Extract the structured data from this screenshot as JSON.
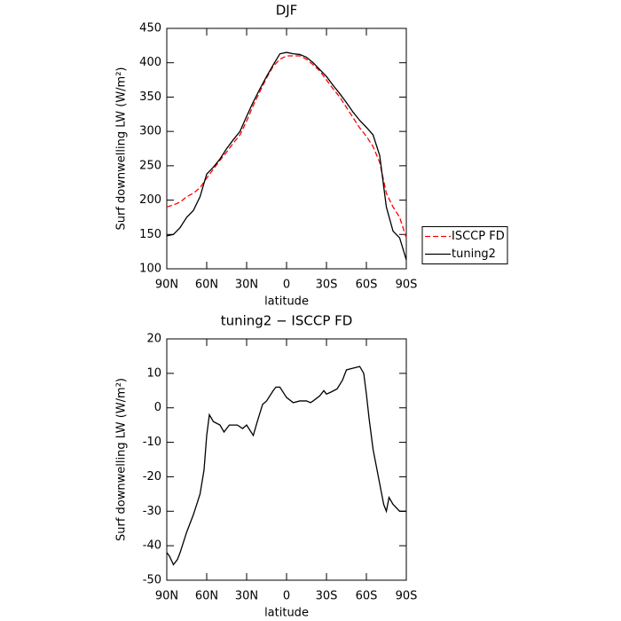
{
  "chart_data": [
    {
      "type": "line",
      "title": "DJF",
      "xlabel": "latitude",
      "ylabel": "Surf downwelling LW (W/m²)",
      "x": [
        90,
        85,
        80,
        75,
        70,
        65,
        60,
        55,
        50,
        45,
        40,
        35,
        30,
        25,
        20,
        15,
        10,
        5,
        0,
        -5,
        -10,
        -15,
        -20,
        -25,
        -30,
        -35,
        -40,
        -45,
        -50,
        -55,
        -60,
        -65,
        -70,
        -75,
        -80,
        -85,
        -90
      ],
      "series": [
        {
          "name": "ISCCP FD",
          "color": "#ff0000",
          "linestyle": "dashed",
          "values": [
            190,
            193,
            197,
            205,
            210,
            218,
            232,
            245,
            258,
            270,
            283,
            295,
            315,
            338,
            358,
            378,
            395,
            405,
            410,
            410,
            410,
            405,
            397,
            388,
            375,
            362,
            350,
            335,
            320,
            305,
            293,
            278,
            255,
            210,
            190,
            175,
            145
          ]
        },
        {
          "name": "tuning2",
          "color": "#000000",
          "linestyle": "solid",
          "values": [
            148,
            150,
            160,
            175,
            185,
            205,
            238,
            248,
            260,
            275,
            288,
            300,
            322,
            343,
            362,
            380,
            397,
            413,
            415,
            413,
            412,
            408,
            400,
            390,
            380,
            367,
            355,
            342,
            328,
            316,
            306,
            295,
            265,
            190,
            155,
            145,
            113
          ]
        }
      ],
      "xlim": [
        90,
        -90
      ],
      "xticks": [
        {
          "value": 90,
          "label": "90N"
        },
        {
          "value": 60,
          "label": "60N"
        },
        {
          "value": 30,
          "label": "30N"
        },
        0,
        {
          "value": -30,
          "label": "30S"
        },
        {
          "value": -60,
          "label": "60S"
        },
        {
          "value": -90,
          "label": "90S"
        }
      ],
      "ylim": [
        100,
        450
      ],
      "yticks": [
        100,
        150,
        200,
        250,
        300,
        350,
        400,
        450
      ],
      "legend": "right"
    },
    {
      "type": "line",
      "title": "tuning2 − ISCCP FD",
      "xlabel": "latitude",
      "ylabel": "Surf downwelling LW (W/m²)",
      "x": [
        90,
        88,
        85,
        82,
        80,
        75,
        70,
        65,
        62,
        60,
        58,
        55,
        50,
        47,
        43,
        40,
        37,
        33,
        30,
        25,
        22,
        18,
        15,
        10,
        8,
        5,
        0,
        -5,
        -10,
        -15,
        -18,
        -20,
        -25,
        -28,
        -30,
        -33,
        -38,
        -42,
        -45,
        -50,
        -55,
        -58,
        -60,
        -62,
        -65,
        -70,
        -73,
        -75,
        -77,
        -80,
        -85,
        -90
      ],
      "series": [
        {
          "name": "tuning2 − ISCCP FD",
          "color": "#000000",
          "linestyle": "solid",
          "values": [
            -42,
            -43,
            -45.5,
            -44,
            -42,
            -36,
            -31,
            -25,
            -18,
            -8,
            -2,
            -4,
            -5,
            -7,
            -5,
            -5,
            -5,
            -6,
            -5,
            -8,
            -4,
            1,
            2,
            5,
            6,
            6,
            3,
            1.5,
            2,
            2,
            1.5,
            2,
            3.5,
            5,
            4,
            4.5,
            5.5,
            8,
            11,
            11.5,
            12,
            10,
            4,
            -3,
            -12,
            -22,
            -28,
            -30,
            -26,
            -28,
            -30,
            -30
          ]
        }
      ],
      "xlim": [
        90,
        -90
      ],
      "xticks": [
        {
          "value": 90,
          "label": "90N"
        },
        {
          "value": 60,
          "label": "60N"
        },
        {
          "value": 30,
          "label": "30N"
        },
        0,
        {
          "value": -30,
          "label": "30S"
        },
        {
          "value": -60,
          "label": "60S"
        },
        {
          "value": -90,
          "label": "90S"
        }
      ],
      "ylim": [
        -50,
        20
      ],
      "yticks": [
        -50,
        -40,
        -30,
        -20,
        -10,
        0,
        10,
        20
      ]
    }
  ]
}
